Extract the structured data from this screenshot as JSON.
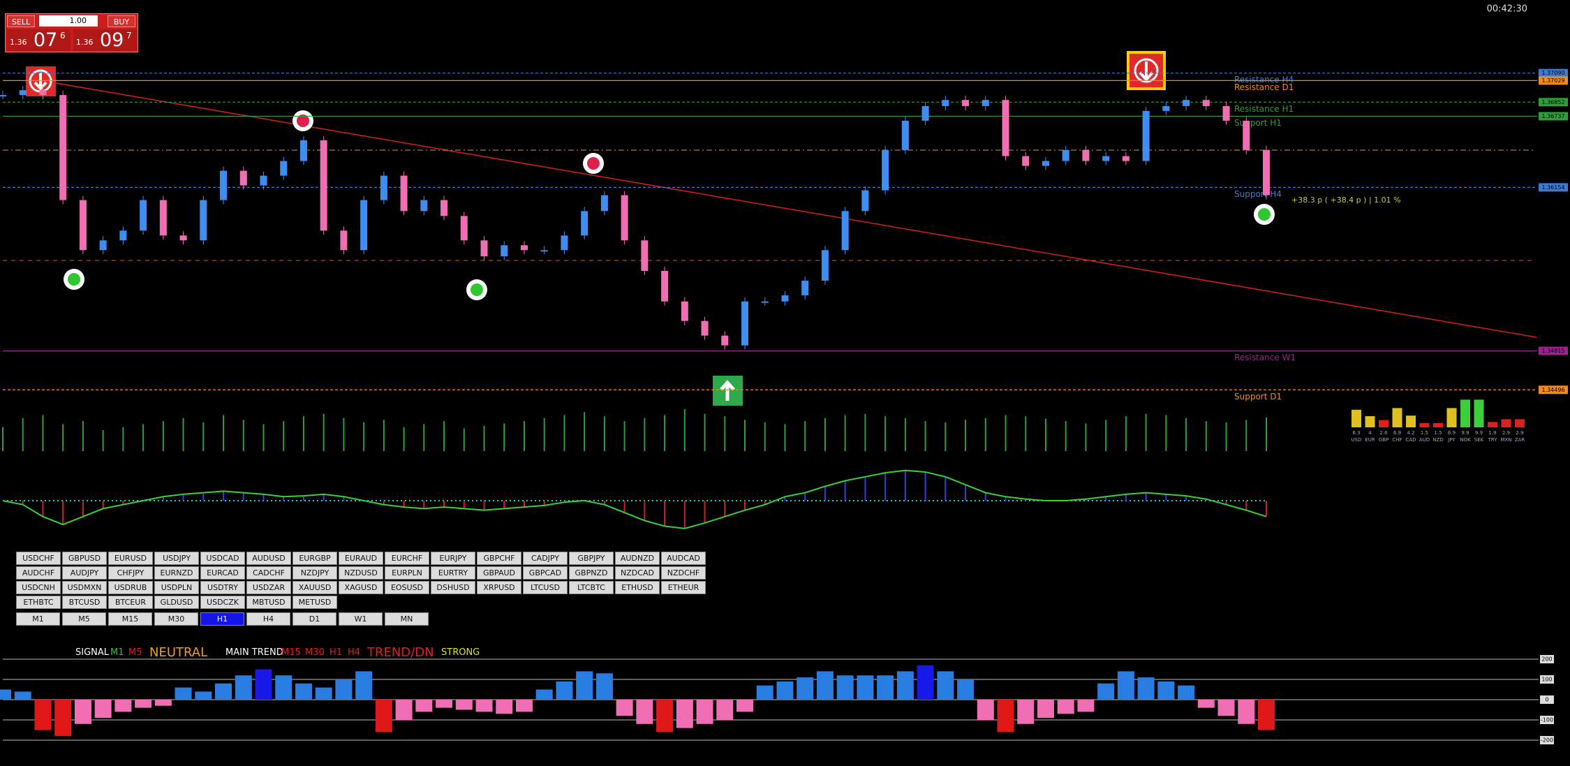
{
  "trade_panel": {
    "sell": "SELL",
    "buy": "BUY",
    "lot": "1.00",
    "sell_price": {
      "big": "1.36",
      "pips": "07",
      "frac": "6"
    },
    "buy_price": {
      "big": "1.36",
      "pips": "09",
      "frac": "7"
    }
  },
  "clock": "00:42:30",
  "profit": "+38.3 p ( +38.4 p ) | 1.01 %",
  "price_chart": {
    "ylim": [
      1.34,
      1.375
    ],
    "closes": [
      1.3691,
      1.3695,
      1.3691,
      1.3605,
      1.3564,
      1.3572,
      1.358,
      1.3605,
      1.3576,
      1.3572,
      1.3605,
      1.3629,
      1.3617,
      1.3625,
      1.3637,
      1.3654,
      1.358,
      1.3564,
      1.3605,
      1.3625,
      1.3596,
      1.3605,
      1.3592,
      1.3572,
      1.3559,
      1.3568,
      1.3564,
      1.3564,
      1.3576,
      1.3596,
      1.3609,
      1.3572,
      1.3547,
      1.3522,
      1.3506,
      1.3494,
      1.3486,
      1.3522,
      1.3522,
      1.3527,
      1.3539,
      1.3564,
      1.3596,
      1.3613,
      1.3646,
      1.367,
      1.3682,
      1.3687,
      1.3682,
      1.3687,
      1.3641,
      1.3633,
      1.3637,
      1.3646,
      1.3637,
      1.3641,
      1.3637,
      1.3678,
      1.3682,
      1.3687,
      1.3682,
      1.367,
      1.3646,
      1.3609
    ],
    "up_color": "#3d8ef0",
    "down_color": "#f06eb4",
    "levels": [
      {
        "price": {
          "value": 1.3709,
          "label": "1.37090"
        },
        "name": "Resistance H4",
        "color": "#3a7bd5"
      },
      {
        "price": {
          "value": 1.37029,
          "label": "1.37029"
        },
        "name": "Resistance D1",
        "color": "#f08a1c"
      },
      {
        "price": {
          "value": 1.36852,
          "label": "1.36852"
        },
        "name": "Resistance H1",
        "color": "#2e9e3a"
      },
      {
        "price": {
          "value": 1.36737,
          "label": "1.36737"
        },
        "name": "Support H1",
        "color": "#2e9e3a"
      },
      {
        "price": {
          "value": 1.36154,
          "label": "1.36154"
        },
        "name": "Support H4",
        "color": "#3a7bd5"
      },
      {
        "price": {
          "value": 1.34815,
          "label": "1.34815"
        },
        "name": "Resistance W1",
        "color": "#a0208f"
      },
      {
        "price": {
          "value": 1.34496,
          "label": "1.34496"
        },
        "name": "Support D1",
        "color": "#f08a1c"
      }
    ]
  },
  "volume": {
    "ylim": [
      0,
      100
    ],
    "color": "#2e9e3a",
    "values": [
      40,
      55,
      60,
      45,
      50,
      35,
      40,
      45,
      50,
      55,
      48,
      60,
      52,
      45,
      50,
      58,
      62,
      55,
      48,
      52,
      40,
      45,
      50,
      38,
      42,
      46,
      50,
      55,
      60,
      65,
      58,
      50,
      55,
      60,
      70,
      62,
      58,
      52,
      48,
      45,
      50,
      55,
      60,
      62,
      58,
      55,
      50,
      48,
      52,
      55,
      60,
      58,
      54,
      50,
      46,
      52,
      58,
      62,
      60,
      55,
      50,
      48,
      52,
      56
    ]
  },
  "oscillator": {
    "ylim": [
      -50,
      50
    ],
    "color": "#3ccf3c",
    "values": [
      0,
      -5,
      -20,
      -30,
      -20,
      -10,
      -5,
      0,
      5,
      8,
      10,
      12,
      10,
      8,
      5,
      6,
      8,
      5,
      0,
      -5,
      -8,
      -10,
      -8,
      -10,
      -12,
      -10,
      -8,
      -6,
      -2,
      0,
      -5,
      -15,
      -25,
      -32,
      -35,
      -28,
      -20,
      -12,
      -5,
      5,
      10,
      18,
      25,
      30,
      35,
      38,
      36,
      30,
      20,
      10,
      5,
      2,
      0,
      0,
      2,
      5,
      8,
      10,
      8,
      6,
      2,
      -5,
      -12,
      -20
    ]
  },
  "strength_meter": {
    "currencies": [
      "USD",
      "EUR",
      "GBP",
      "CHF",
      "CAD",
      "AUD",
      "NZD",
      "JPY",
      "NOK",
      "SEK",
      "TRY",
      "MXN",
      "ZAR"
    ],
    "values": [
      6.3,
      4.0,
      2.6,
      6.9,
      4.2,
      1.5,
      1.5,
      6.9,
      9.9,
      9.9,
      1.9,
      2.9,
      2.9
    ]
  },
  "pairs": [
    [
      "USDCHF",
      "GBPUSD",
      "EURUSD",
      "USDJPY",
      "USDCAD",
      "AUDUSD",
      "EURGBP",
      "EURAUD",
      "EURCHF",
      "EURJPY",
      "GBPCHF",
      "CADJPY",
      "GBPJPY",
      "AUDNZD",
      "AUDCAD"
    ],
    [
      "AUDCHF",
      "AUDJPY",
      "CHFJPY",
      "EURNZD",
      "EURCAD",
      "CADCHF",
      "NZDJPY",
      "NZDUSD",
      "EURPLN",
      "EURTRY",
      "GBPAUD",
      "GBPCAD",
      "GBPNZD",
      "NZDCAD",
      "NZDCHF"
    ],
    [
      "USDCNH",
      "USDMXN",
      "USDRUB",
      "USDPLN",
      "USDTRY",
      "USDZAR",
      "XAUUSD",
      "XAGUSD",
      "EOSUSD",
      "DSHUSD",
      "XRPUSD",
      "LTCUSD",
      "LTCBTC",
      "ETHUSD",
      "ETHEUR"
    ],
    [
      "ETHBTC",
      "BTCUSD",
      "BTCEUR",
      "GLDUSD",
      "USDCZK",
      "MBTUSD",
      "METUSD"
    ]
  ],
  "timeframes": [
    "M1",
    "M5",
    "M15",
    "M30",
    "H1",
    "H4",
    "D1",
    "W1",
    "MN"
  ],
  "active_timeframe": 4,
  "signal_bar": {
    "signal": "SIGNAL",
    "m1": "M1",
    "m5": "M5",
    "state": "NEUTRAL",
    "main_trend": "MAIN TREND",
    "m15": "M15",
    "m30": "M30",
    "h1": "H1",
    "h4": "H4",
    "trend": "TREND/DN",
    "strength": "STRONG"
  },
  "histogram": {
    "ylim": [
      -250,
      250
    ],
    "yticks": [
      200,
      100,
      0,
      -100,
      -200
    ],
    "values": [
      50,
      40,
      -150,
      -180,
      -120,
      -90,
      -60,
      -40,
      -30,
      60,
      40,
      80,
      120,
      150,
      120,
      80,
      60,
      100,
      140,
      -160,
      -100,
      -60,
      -40,
      -50,
      -60,
      -70,
      -60,
      50,
      90,
      140,
      130,
      -80,
      -120,
      -160,
      -140,
      -120,
      -100,
      -60,
      70,
      90,
      110,
      140,
      120,
      120,
      120,
      140,
      170,
      140,
      100,
      -100,
      -160,
      -120,
      -90,
      -70,
      -60,
      80,
      140,
      110,
      90,
      70,
      -40,
      -80,
      -120,
      -150
    ]
  }
}
